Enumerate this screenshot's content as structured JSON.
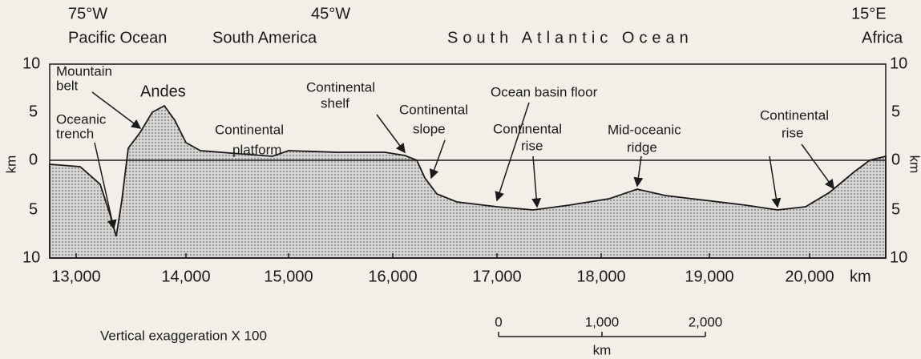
{
  "header": {
    "longitudes": [
      "75°W",
      "45°W",
      "15°E"
    ],
    "regions": [
      "Pacific Ocean",
      "South America",
      "South Atlantic Ocean",
      "Africa"
    ]
  },
  "axes": {
    "left_ticks": [
      "10",
      "5",
      "0",
      "5",
      "10"
    ],
    "right_ticks": [
      "10",
      "5",
      "0",
      "5",
      "10"
    ],
    "y_unit": "km",
    "x_ticks": [
      "13,000",
      "14,000",
      "15,000",
      "16,000",
      "17,000",
      "18,000",
      "19,000",
      "20,000"
    ],
    "x_unit": "km"
  },
  "labels": [
    {
      "lines": [
        "Mountain",
        "belt"
      ]
    },
    {
      "lines": [
        "Andes"
      ]
    },
    {
      "lines": [
        "Oceanic",
        "trench"
      ]
    },
    {
      "lines": [
        "Continental",
        "platform"
      ]
    },
    {
      "lines": [
        "Continental",
        "shelf"
      ]
    },
    {
      "lines": [
        "Continental",
        "slope"
      ]
    },
    {
      "lines": [
        "Ocean basin floor"
      ]
    },
    {
      "lines": [
        "Continental",
        "rise"
      ]
    },
    {
      "lines": [
        "Mid-oceanic",
        "ridge"
      ]
    },
    {
      "lines": [
        "Continental",
        "rise"
      ]
    }
  ],
  "footer": {
    "exaggeration": "Vertical exaggeration X 100",
    "scale": [
      "0",
      "1,000",
      "2,000"
    ],
    "scale_unit": "km"
  }
}
